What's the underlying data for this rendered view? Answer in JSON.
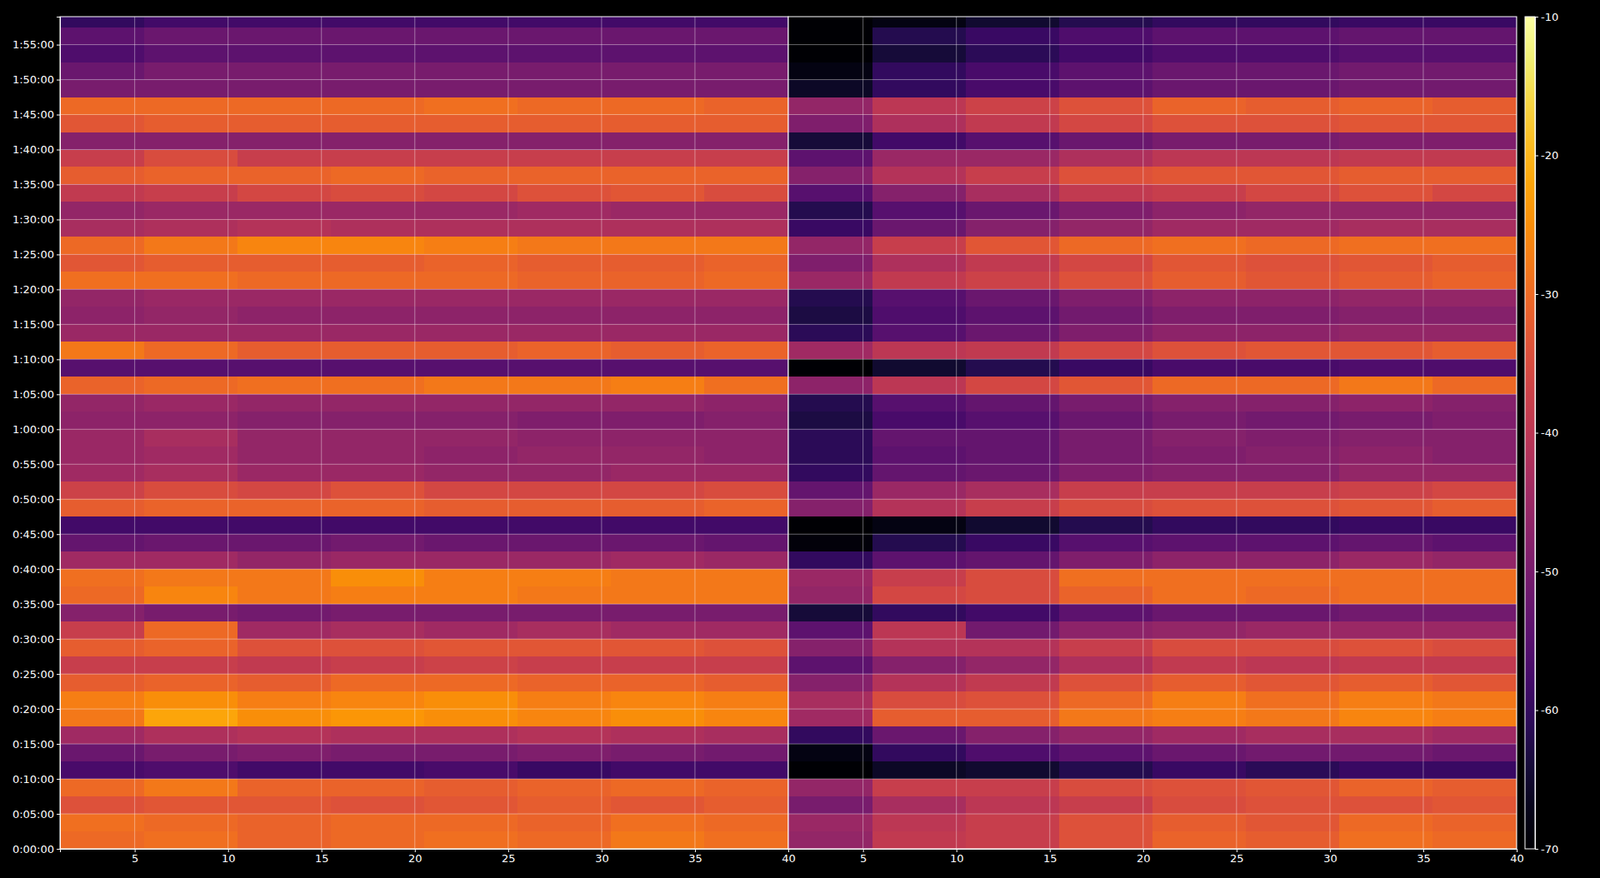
{
  "chart_data": [
    {
      "type": "heatmap",
      "grid": true,
      "xlim": [
        1,
        40
      ],
      "xticks": [
        5,
        10,
        15,
        20,
        25,
        30,
        35,
        40
      ],
      "ylim": [
        0,
        7140
      ],
      "yticks": [
        {
          "value": 0,
          "label": "0:00:00"
        },
        {
          "value": 300,
          "label": "0:05:00"
        },
        {
          "value": 600,
          "label": "0:10:00"
        },
        {
          "value": 900,
          "label": "0:15:00"
        },
        {
          "value": 1200,
          "label": "0:20:00"
        },
        {
          "value": 1500,
          "label": "0:25:00"
        },
        {
          "value": 1800,
          "label": "0:30:00"
        },
        {
          "value": 2100,
          "label": "0:35:00"
        },
        {
          "value": 2400,
          "label": "0:40:00"
        },
        {
          "value": 2700,
          "label": "0:45:00"
        },
        {
          "value": 3000,
          "label": "0:50:00"
        },
        {
          "value": 3300,
          "label": "0:55:00"
        },
        {
          "value": 3600,
          "label": "1:00:00"
        },
        {
          "value": 3900,
          "label": "1:05:00"
        },
        {
          "value": 4200,
          "label": "1:10:00"
        },
        {
          "value": 4500,
          "label": "1:15:00"
        },
        {
          "value": 4800,
          "label": "1:20:00"
        },
        {
          "value": 5100,
          "label": "1:25:00"
        },
        {
          "value": 5400,
          "label": "1:30:00"
        },
        {
          "value": 5700,
          "label": "1:35:00"
        },
        {
          "value": 6000,
          "label": "1:40:00"
        },
        {
          "value": 6300,
          "label": "1:45:00"
        },
        {
          "value": 6600,
          "label": "1:50:00"
        },
        {
          "value": 6900,
          "label": "1:55:00"
        }
      ],
      "x": [
        3,
        8,
        13,
        18,
        23,
        28,
        33,
        38
      ],
      "y": [
        75,
        225,
        375,
        525,
        675,
        825,
        975,
        1125,
        1275,
        1425,
        1575,
        1725,
        1875,
        2025,
        2175,
        2325,
        2475,
        2625,
        2775,
        2925,
        3075,
        3225,
        3375,
        3525,
        3675,
        3825,
        3975,
        4125,
        4275,
        4425,
        4575,
        4725,
        4875,
        5025,
        5175,
        5325,
        5475,
        5625,
        5775,
        5925,
        6075,
        6225,
        6375,
        6525,
        6675,
        6825,
        6975,
        7125
      ],
      "values": [
        [
          -30,
          -29,
          -31,
          -30,
          -29,
          -30,
          -28,
          -29
        ],
        [
          -29,
          -30,
          -31,
          -30,
          -30,
          -31,
          -29,
          -30
        ],
        [
          -34,
          -33,
          -33,
          -34,
          -33,
          -32,
          -33,
          -32
        ],
        [
          -30,
          -28,
          -31,
          -31,
          -32,
          -31,
          -30,
          -31
        ],
        [
          -57,
          -56,
          -58,
          -58,
          -57,
          -59,
          -58,
          -58
        ],
        [
          -52,
          -50,
          -49,
          -50,
          -50,
          -49,
          -50,
          -51
        ],
        [
          -44,
          -42,
          -41,
          -42,
          -42,
          -41,
          -42,
          -43
        ],
        [
          -28,
          -22,
          -25,
          -24,
          -25,
          -26,
          -25,
          -26
        ],
        [
          -27,
          -25,
          -27,
          -26,
          -25,
          -27,
          -26,
          -27
        ],
        [
          -32,
          -31,
          -32,
          -30,
          -30,
          -31,
          -31,
          -32
        ],
        [
          -38,
          -38,
          -39,
          -38,
          -37,
          -38,
          -38,
          -38
        ],
        [
          -32,
          -31,
          -34,
          -34,
          -33,
          -33,
          -33,
          -34
        ],
        [
          -38,
          -30,
          -44,
          -43,
          -44,
          -43,
          -44,
          -44
        ],
        [
          -48,
          -50,
          -51,
          -50,
          -50,
          -50,
          -50,
          -50
        ],
        [
          -30,
          -26,
          -28,
          -27,
          -27,
          -28,
          -28,
          -28
        ],
        [
          -29,
          -28,
          -28,
          -25,
          -27,
          -27,
          -28,
          -28
        ],
        [
          -44,
          -44,
          -46,
          -45,
          -45,
          -45,
          -44,
          -45
        ],
        [
          -53,
          -52,
          -52,
          -51,
          -52,
          -52,
          -52,
          -53
        ],
        [
          -58,
          -58,
          -58,
          -58,
          -58,
          -58,
          -58,
          -58
        ],
        [
          -32,
          -31,
          -31,
          -31,
          -32,
          -32,
          -32,
          -31
        ],
        [
          -37,
          -35,
          -36,
          -34,
          -36,
          -36,
          -36,
          -35
        ],
        [
          -44,
          -43,
          -45,
          -45,
          -46,
          -46,
          -45,
          -45
        ],
        [
          -45,
          -44,
          -46,
          -46,
          -47,
          -46,
          -46,
          -47
        ],
        [
          -45,
          -43,
          -46,
          -46,
          -46,
          -47,
          -47,
          -47
        ],
        [
          -47,
          -47,
          -48,
          -48,
          -48,
          -49,
          -49,
          -48
        ],
        [
          -46,
          -45,
          -46,
          -46,
          -46,
          -46,
          -46,
          -47
        ],
        [
          -31,
          -30,
          -29,
          -29,
          -28,
          -28,
          -27,
          -29
        ],
        [
          -55,
          -55,
          -55,
          -55,
          -55,
          -55,
          -55,
          -55
        ],
        [
          -28,
          -30,
          -32,
          -32,
          -32,
          -31,
          -32,
          -31
        ],
        [
          -45,
          -45,
          -45,
          -45,
          -45,
          -45,
          -45,
          -45
        ],
        [
          -47,
          -46,
          -47,
          -47,
          -47,
          -47,
          -47,
          -47
        ],
        [
          -46,
          -45,
          -45,
          -45,
          -45,
          -45,
          -45,
          -45
        ],
        [
          -29,
          -29,
          -30,
          -30,
          -30,
          -31,
          -31,
          -30
        ],
        [
          -33,
          -32,
          -32,
          -32,
          -31,
          -32,
          -32,
          -31
        ],
        [
          -30,
          -28,
          -26,
          -26,
          -27,
          -28,
          -28,
          -28
        ],
        [
          -43,
          -42,
          -41,
          -42,
          -42,
          -42,
          -42,
          -42
        ],
        [
          -46,
          -45,
          -45,
          -45,
          -45,
          -44,
          -45,
          -45
        ],
        [
          -39,
          -38,
          -36,
          -35,
          -36,
          -34,
          -33,
          -35
        ],
        [
          -32,
          -31,
          -31,
          -30,
          -31,
          -31,
          -31,
          -31
        ],
        [
          -38,
          -35,
          -38,
          -38,
          -38,
          -38,
          -38,
          -38
        ],
        [
          -48,
          -48,
          -48,
          -48,
          -48,
          -48,
          -48,
          -48
        ],
        [
          -33,
          -32,
          -32,
          -32,
          -32,
          -32,
          -32,
          -32
        ],
        [
          -30,
          -30,
          -30,
          -30,
          -29,
          -30,
          -30,
          -31
        ],
        [
          -50,
          -50,
          -50,
          -50,
          -50,
          -50,
          -50,
          -50
        ],
        [
          -52,
          -50,
          -50,
          -50,
          -50,
          -50,
          -50,
          -50
        ],
        [
          -56,
          -54,
          -54,
          -54,
          -54,
          -54,
          -54,
          -54
        ],
        [
          -54,
          -52,
          -52,
          -52,
          -52,
          -52,
          -52,
          -52
        ],
        [
          -60,
          -58,
          -58,
          -58,
          -58,
          -58,
          -58,
          -58
        ]
      ]
    },
    {
      "type": "heatmap",
      "grid": true,
      "tick_labels": "x",
      "xlim": [
        1,
        40
      ],
      "xticks": [
        5,
        10,
        15,
        20,
        25,
        30,
        35,
        40
      ],
      "ylim": [
        0,
        7140
      ],
      "yticks": [
        0,
        300,
        600,
        900,
        1200,
        1500,
        1800,
        2100,
        2400,
        2700,
        3000,
        3300,
        3600,
        3900,
        4200,
        4500,
        4800,
        5100,
        5400,
        5700,
        6000,
        6300,
        6600,
        6900
      ],
      "x": [
        3,
        8,
        13,
        18,
        23,
        28,
        33,
        38
      ],
      "y": [
        75,
        225,
        375,
        525,
        675,
        825,
        975,
        1125,
        1275,
        1425,
        1575,
        1725,
        1875,
        2025,
        2175,
        2325,
        2475,
        2625,
        2775,
        2925,
        3075,
        3225,
        3375,
        3525,
        3675,
        3825,
        3975,
        4125,
        4275,
        4425,
        4575,
        4725,
        4875,
        5025,
        5175,
        5325,
        5475,
        5625,
        5775,
        5925,
        6075,
        6225,
        6375,
        6525,
        6675,
        6825,
        6975,
        7125
      ],
      "values": [
        [
          -46,
          -39,
          -38,
          -34,
          -31,
          -32,
          -29,
          -30
        ],
        [
          -45,
          -40,
          -38,
          -34,
          -32,
          -33,
          -30,
          -31
        ],
        [
          -50,
          -43,
          -40,
          -38,
          -35,
          -34,
          -34,
          -33
        ],
        [
          -46,
          -38,
          -38,
          -35,
          -34,
          -33,
          -31,
          -32
        ],
        [
          -70,
          -66,
          -65,
          -62,
          -59,
          -61,
          -59,
          -59
        ],
        [
          -68,
          -60,
          -56,
          -54,
          -52,
          -51,
          -51,
          -52
        ],
        [
          -60,
          -52,
          -48,
          -46,
          -44,
          -43,
          -43,
          -44
        ],
        [
          -44,
          -32,
          -32,
          -28,
          -27,
          -28,
          -26,
          -27
        ],
        [
          -43,
          -35,
          -34,
          -30,
          -27,
          -29,
          -27,
          -28
        ],
        [
          -48,
          -41,
          -39,
          -34,
          -32,
          -33,
          -32,
          -33
        ],
        [
          -54,
          -48,
          -46,
          -42,
          -39,
          -40,
          -39,
          -39
        ],
        [
          -48,
          -41,
          -41,
          -38,
          -35,
          -35,
          -34,
          -35
        ],
        [
          -54,
          -40,
          -51,
          -47,
          -46,
          -45,
          -45,
          -45
        ],
        [
          -64,
          -60,
          -58,
          -54,
          -52,
          -52,
          -51,
          -51
        ],
        [
          -46,
          -36,
          -35,
          -31,
          -29,
          -30,
          -29,
          -29
        ],
        [
          -45,
          -38,
          -35,
          -29,
          -29,
          -29,
          -29,
          -29
        ],
        [
          -60,
          -54,
          -53,
          -49,
          -47,
          -47,
          -45,
          -46
        ],
        [
          -69,
          -62,
          -59,
          -55,
          -54,
          -54,
          -53,
          -54
        ],
        [
          -70,
          -68,
          -65,
          -62,
          -60,
          -60,
          -59,
          -59
        ],
        [
          -48,
          -41,
          -38,
          -35,
          -34,
          -34,
          -33,
          -32
        ],
        [
          -53,
          -45,
          -43,
          -38,
          -38,
          -38,
          -37,
          -36
        ],
        [
          -60,
          -53,
          -52,
          -49,
          -48,
          -48,
          -46,
          -46
        ],
        [
          -61,
          -54,
          -53,
          -50,
          -49,
          -48,
          -47,
          -48
        ],
        [
          -61,
          -53,
          -53,
          -50,
          -48,
          -49,
          -48,
          -48
        ],
        [
          -63,
          -57,
          -55,
          -52,
          -50,
          -51,
          -50,
          -49
        ],
        [
          -62,
          -55,
          -53,
          -50,
          -48,
          -48,
          -47,
          -48
        ],
        [
          -47,
          -40,
          -36,
          -33,
          -30,
          -30,
          -28,
          -30
        ],
        [
          -70,
          -65,
          -62,
          -59,
          -57,
          -57,
          -56,
          -56
        ],
        [
          -44,
          -40,
          -39,
          -36,
          -34,
          -33,
          -33,
          -32
        ],
        [
          -61,
          -55,
          -52,
          -49,
          -47,
          -47,
          -46,
          -46
        ],
        [
          -63,
          -56,
          -54,
          -51,
          -49,
          -49,
          -48,
          -48
        ],
        [
          -62,
          -55,
          -52,
          -49,
          -47,
          -47,
          -46,
          -46
        ],
        [
          -45,
          -39,
          -37,
          -34,
          -32,
          -33,
          -32,
          -31
        ],
        [
          -49,
          -42,
          -39,
          -36,
          -33,
          -34,
          -33,
          -32
        ],
        [
          -46,
          -38,
          -33,
          -30,
          -29,
          -30,
          -29,
          -29
        ],
        [
          -59,
          -52,
          -48,
          -46,
          -44,
          -44,
          -43,
          -43
        ],
        [
          -62,
          -55,
          -52,
          -49,
          -47,
          -46,
          -46,
          -46
        ],
        [
          -55,
          -48,
          -43,
          -39,
          -38,
          -36,
          -34,
          -36
        ],
        [
          -48,
          -41,
          -38,
          -34,
          -33,
          -33,
          -32,
          -32
        ],
        [
          -54,
          -45,
          -45,
          -42,
          -40,
          -40,
          -39,
          -39
        ],
        [
          -64,
          -58,
          -55,
          -52,
          -50,
          -50,
          -49,
          -49
        ],
        [
          -49,
          -42,
          -39,
          -36,
          -34,
          -34,
          -33,
          -33
        ],
        [
          -46,
          -40,
          -37,
          -34,
          -31,
          -32,
          -31,
          -32
        ],
        [
          -66,
          -60,
          -57,
          -54,
          -52,
          -52,
          -51,
          -51
        ],
        [
          -68,
          -60,
          -57,
          -54,
          -52,
          -52,
          -51,
          -51
        ],
        [
          -70,
          -64,
          -61,
          -58,
          -56,
          -56,
          -55,
          -55
        ],
        [
          -70,
          -62,
          -59,
          -56,
          -54,
          -54,
          -53,
          -53
        ],
        [
          -70,
          -68,
          -65,
          -62,
          -60,
          -60,
          -59,
          -59
        ]
      ],
      "colorbar": {
        "range": [
          -70,
          -10
        ],
        "ticks": [
          -70,
          -60,
          -50,
          -40,
          -30,
          -20,
          -10
        ]
      }
    }
  ]
}
